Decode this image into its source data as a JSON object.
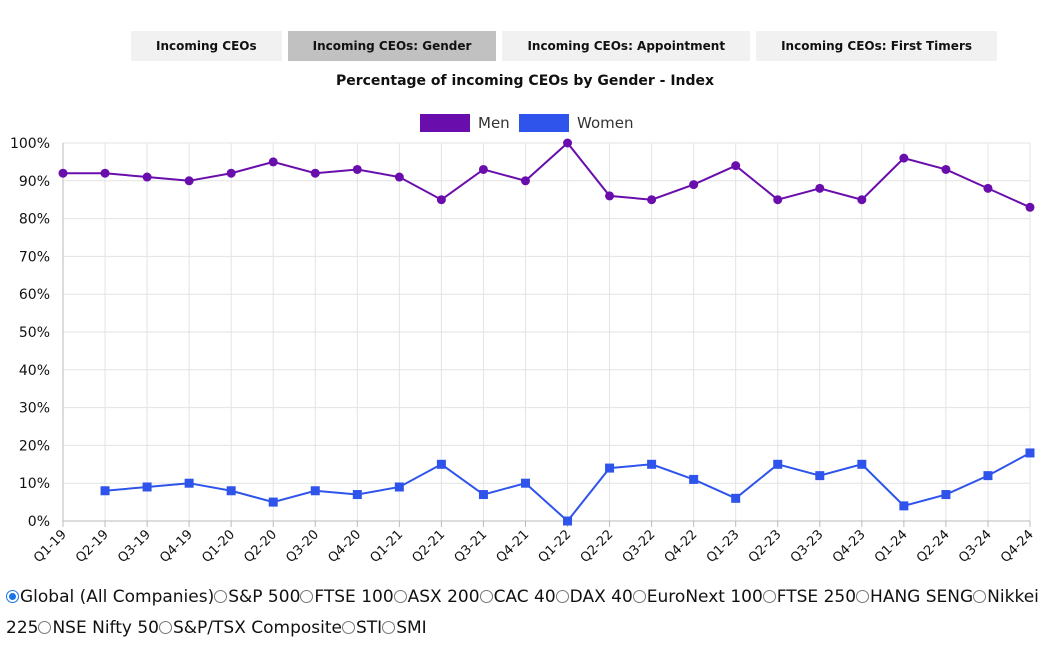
{
  "tabs": [
    {
      "label": "Incoming CEOs",
      "active": false
    },
    {
      "label": "Incoming CEOs: Gender",
      "active": true
    },
    {
      "label": "Incoming CEOs: Appointment",
      "active": false
    },
    {
      "label": "Incoming CEOs: First Timers",
      "active": false
    }
  ],
  "chart_data": {
    "type": "line",
    "title": "Percentage of incoming CEOs by Gender - Index",
    "xlabel": "",
    "ylabel": "",
    "categories": [
      "Q1-19",
      "Q2-19",
      "Q3-19",
      "Q4-19",
      "Q1-20",
      "Q2-20",
      "Q3-20",
      "Q4-20",
      "Q1-21",
      "Q2-21",
      "Q3-21",
      "Q4-21",
      "Q1-22",
      "Q2-22",
      "Q3-22",
      "Q4-22",
      "Q1-23",
      "Q2-23",
      "Q3-23",
      "Q4-23",
      "Q1-24",
      "Q2-24",
      "Q3-24",
      "Q4-24"
    ],
    "ylim": [
      0,
      100
    ],
    "yticks": [
      "0%",
      "10%",
      "20%",
      "30%",
      "40%",
      "50%",
      "60%",
      "70%",
      "80%",
      "90%",
      "100%"
    ],
    "grid": true,
    "legend_position": "top-center",
    "series": [
      {
        "name": "Men",
        "color": "#6a0dad",
        "marker": "circle",
        "values": [
          92,
          92,
          91,
          90,
          92,
          95,
          92,
          93,
          91,
          85,
          93,
          90,
          100,
          86,
          85,
          89,
          94,
          85,
          88,
          85,
          96,
          93,
          88,
          83
        ]
      },
      {
        "name": "Women",
        "color": "#2f54eb",
        "marker": "square",
        "values": [
          null,
          8,
          9,
          10,
          8,
          5,
          8,
          7,
          9,
          15,
          7,
          10,
          0,
          14,
          15,
          11,
          6,
          15,
          12,
          15,
          4,
          7,
          12,
          18
        ]
      }
    ]
  },
  "filters": {
    "options": [
      {
        "label": "Global (All Companies)",
        "checked": true
      },
      {
        "label": "S&P 500",
        "checked": false
      },
      {
        "label": "FTSE 100",
        "checked": false
      },
      {
        "label": "ASX 200",
        "checked": false
      },
      {
        "label": "CAC 40",
        "checked": false
      },
      {
        "label": "DAX 40",
        "checked": false
      },
      {
        "label": "EuroNext 100",
        "checked": false
      },
      {
        "label": "FTSE 250",
        "checked": false
      },
      {
        "label": "HANG SENG",
        "checked": false
      },
      {
        "label": "Nikkei 225",
        "checked": false
      },
      {
        "label": "NSE Nifty 50",
        "checked": false
      },
      {
        "label": "S&P/TSX Composite",
        "checked": false
      },
      {
        "label": "STI",
        "checked": false
      },
      {
        "label": "SMI",
        "checked": false
      }
    ]
  }
}
